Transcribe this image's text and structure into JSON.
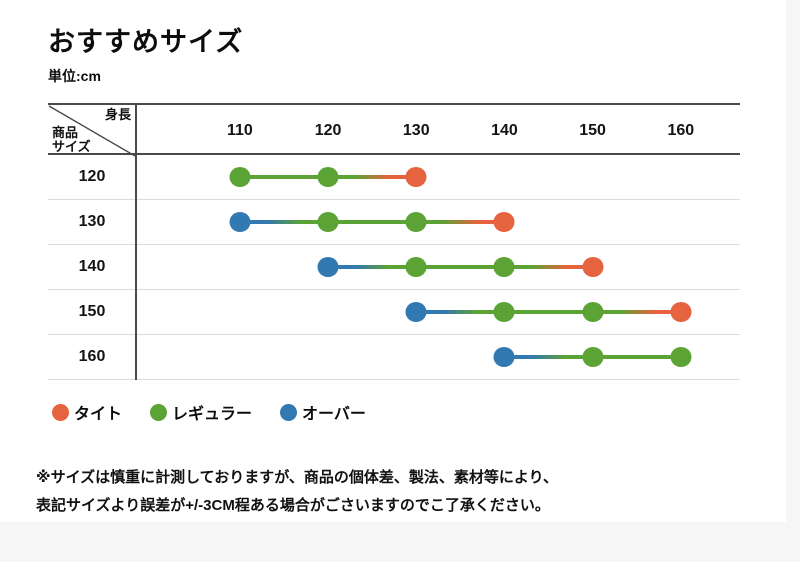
{
  "page": {
    "title": "おすすめサイズ",
    "unit_label": "単位:cm"
  },
  "table": {
    "corner": {
      "top": "身長",
      "bottom_line1": "商品",
      "bottom_line2": "サイズ"
    }
  },
  "legend": {
    "items": [
      {
        "key": "tight",
        "label": "タイト",
        "color": "#E5633E"
      },
      {
        "key": "regular",
        "label": "レギュラー",
        "color": "#5CA335"
      },
      {
        "key": "over",
        "label": "オーバー",
        "color": "#3278B1"
      }
    ]
  },
  "chart_data": {
    "type": "line",
    "title": "おすすめサイズ",
    "unit": "cm",
    "x_axis_label": "身長",
    "y_axis_label": "商品サイズ",
    "heights": [
      "110",
      "120",
      "130",
      "140",
      "150",
      "160"
    ],
    "fit_colors": {
      "tight": "#E5633E",
      "regular": "#5CA335",
      "over": "#3278B1"
    },
    "rows": [
      {
        "size": "120",
        "points": [
          {
            "height": "110",
            "fit": "regular"
          },
          {
            "height": "120",
            "fit": "regular"
          },
          {
            "height": "130",
            "fit": "tight"
          }
        ]
      },
      {
        "size": "130",
        "points": [
          {
            "height": "110",
            "fit": "over"
          },
          {
            "height": "120",
            "fit": "regular"
          },
          {
            "height": "130",
            "fit": "regular"
          },
          {
            "height": "140",
            "fit": "tight"
          }
        ]
      },
      {
        "size": "140",
        "points": [
          {
            "height": "120",
            "fit": "over"
          },
          {
            "height": "130",
            "fit": "regular"
          },
          {
            "height": "140",
            "fit": "regular"
          },
          {
            "height": "150",
            "fit": "tight"
          }
        ]
      },
      {
        "size": "150",
        "points": [
          {
            "height": "130",
            "fit": "over"
          },
          {
            "height": "140",
            "fit": "regular"
          },
          {
            "height": "150",
            "fit": "regular"
          },
          {
            "height": "160",
            "fit": "tight"
          }
        ]
      },
      {
        "size": "160",
        "points": [
          {
            "height": "140",
            "fit": "over"
          },
          {
            "height": "150",
            "fit": "regular"
          },
          {
            "height": "160",
            "fit": "regular"
          }
        ]
      }
    ]
  },
  "footnote": {
    "line1": "※サイズは慎重に計測しておりますが、商品の個体差、製法、素材等により、",
    "line2": "表記サイズより誤差が+/-3CM程ある場合がごさいますのでこ了承ください。"
  }
}
